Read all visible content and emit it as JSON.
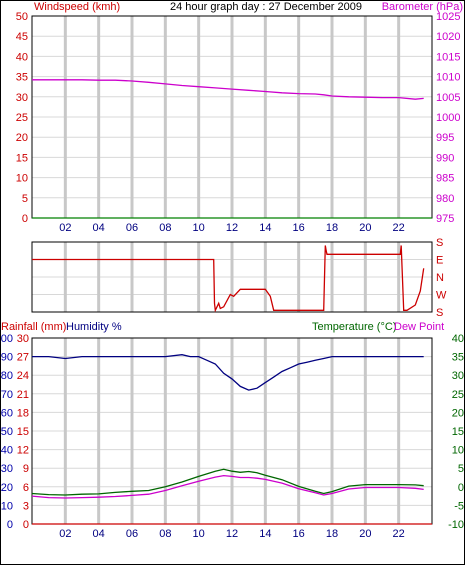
{
  "colors": {
    "frame": "#000000",
    "grid_v": "#c8c8c8",
    "grid_h": "#d8d8d8",
    "wind_axis": "#cc0000",
    "baro_axis": "#cc00cc",
    "rain_axis": "#cc0000",
    "hum_axis": "#0000aa",
    "temp_axis": "#006600",
    "title": "#000000",
    "xtick": "#000080",
    "dir_axis": "#cc0000"
  },
  "panels": {
    "top": {
      "title": "24 hour graph day : 27 December 2009",
      "left_label": "Windspeed (kmh)",
      "right_label": "Barometer (hPa)"
    },
    "middle": {
      "right_label": "S E N W S"
    },
    "bottom": {
      "left_label_1": "Rainfall (mm)",
      "left_label_2": "Humidity %",
      "right_label_1": "Temperature (°C)",
      "right_label_2": "Dew Point"
    }
  },
  "chart_data": [
    {
      "type": "line",
      "title": "24 hour graph day : 27 December 2009",
      "xlabel": "",
      "x_ticks": [
        "02",
        "04",
        "06",
        "08",
        "10",
        "12",
        "14",
        "16",
        "18",
        "20",
        "22"
      ],
      "x_range_hours": [
        0,
        24
      ],
      "y_left": {
        "label": "Windspeed (kmh)",
        "range": [
          0,
          50
        ],
        "ticks": [
          "0",
          "5",
          "10",
          "15",
          "20",
          "25",
          "30",
          "35",
          "40",
          "45",
          "50"
        ]
      },
      "y_right": {
        "label": "Barometer (hPa)",
        "range": [
          975,
          1025
        ],
        "ticks": [
          "975",
          "980",
          "985",
          "990",
          "995",
          "1000",
          "1005",
          "1010",
          "1015",
          "1020",
          "1025"
        ]
      },
      "series": [
        {
          "name": "Windspeed (kmh)",
          "axis": "left",
          "color": "#008000",
          "x": [
            0,
            24
          ],
          "y": [
            0,
            0
          ]
        },
        {
          "name": "Barometer (hPa)",
          "axis": "right",
          "color": "#cc00cc",
          "x": [
            0,
            1,
            2,
            3,
            4,
            5,
            6,
            7,
            8,
            9,
            10,
            11,
            12,
            13,
            14,
            15,
            16,
            17,
            17.5,
            18,
            19,
            20,
            21,
            22,
            23,
            23.5
          ],
          "y": [
            1009.2,
            1009.2,
            1009.2,
            1009.2,
            1009.1,
            1009.1,
            1008.9,
            1008.6,
            1008.2,
            1007.8,
            1007.5,
            1007.2,
            1006.9,
            1006.6,
            1006.3,
            1006.0,
            1005.8,
            1005.7,
            1005.5,
            1005.2,
            1005.0,
            1004.9,
            1004.8,
            1004.8,
            1004.4,
            1004.6
          ]
        }
      ],
      "grid": true
    },
    {
      "type": "line",
      "title": "",
      "x_range_hours": [
        0,
        24
      ],
      "y_right": {
        "range": [
          0,
          4
        ],
        "ticks": [
          "S",
          "E",
          "N",
          "W",
          "S"
        ]
      },
      "series": [
        {
          "name": "Wind direction",
          "axis": "right",
          "color": "#cc0000",
          "x": [
            0,
            10.9,
            10.95,
            11.0,
            11.2,
            11.3,
            11.5,
            11.9,
            12.1,
            12.5,
            13.0,
            13.6,
            14.0,
            14.3,
            14.5,
            15.0,
            16.0,
            17.5,
            17.6,
            17.65,
            17.7,
            22.1,
            22.15,
            22.3,
            22.5,
            23.0,
            23.3,
            23.5
          ],
          "y": [
            3.0,
            3.0,
            0.5,
            0.1,
            0.5,
            0.2,
            0.3,
            1.0,
            0.9,
            1.3,
            1.3,
            1.3,
            1.3,
            0.9,
            0.1,
            0.1,
            0.1,
            0.1,
            3.8,
            3.5,
            3.3,
            3.3,
            3.8,
            0.1,
            0.1,
            0.4,
            1.2,
            2.5
          ]
        }
      ],
      "grid": true
    },
    {
      "type": "line",
      "title": "",
      "x_ticks": [
        "02",
        "04",
        "06",
        "08",
        "10",
        "12",
        "14",
        "16",
        "18",
        "20",
        "22"
      ],
      "x_range_hours": [
        0,
        24
      ],
      "y_left_rain": {
        "label": "Rainfall (mm)",
        "range": [
          0,
          30
        ],
        "ticks": [
          "0",
          "3",
          "6",
          "9",
          "12",
          "15",
          "18",
          "21",
          "24",
          "27",
          "30"
        ]
      },
      "y_left_humidity": {
        "label": "Humidity %",
        "range": [
          0,
          100
        ],
        "ticks": [
          "0",
          "10",
          "20",
          "30",
          "40",
          "50",
          "60",
          "70",
          "80",
          "90",
          "100"
        ]
      },
      "y_right": {
        "label": "Temperature (°C)",
        "range": [
          -10,
          40
        ],
        "ticks": [
          "-10",
          "-5",
          "0",
          "5",
          "10",
          "15",
          "20",
          "25",
          "30",
          "35",
          "40"
        ]
      },
      "series": [
        {
          "name": "Rainfall (mm)",
          "axis": "left_rain",
          "color": "#cc0000",
          "x": [
            0,
            24
          ],
          "y": [
            0,
            0
          ]
        },
        {
          "name": "Humidity %",
          "axis": "left_humidity",
          "color": "#000080",
          "x": [
            0,
            1,
            2,
            3,
            4,
            5,
            6,
            7,
            8,
            9,
            9.5,
            10,
            10.5,
            11,
            11.5,
            12,
            12.5,
            13,
            13.5,
            14,
            14.5,
            15,
            15.5,
            16,
            16.5,
            17,
            17.5,
            18,
            19,
            20,
            21,
            22,
            23,
            23.5
          ],
          "y": [
            90,
            90,
            89,
            90,
            90,
            90,
            90,
            90,
            90,
            91,
            90,
            90,
            88,
            86,
            81,
            78,
            74,
            72,
            73,
            76,
            79,
            82,
            84,
            86,
            87,
            88,
            89,
            90,
            90,
            90,
            90,
            90,
            90,
            90
          ]
        },
        {
          "name": "Temperature (°C)",
          "axis": "right",
          "color": "#006600",
          "x": [
            0,
            1,
            2,
            3,
            4,
            5,
            6,
            7,
            8,
            9,
            10,
            11,
            11.5,
            12,
            12.5,
            13,
            13.5,
            14,
            15,
            16,
            17,
            17.5,
            18,
            19,
            20,
            21,
            22,
            23,
            23.5
          ],
          "y": [
            -1.8,
            -2.1,
            -2.2,
            -2.0,
            -1.9,
            -1.5,
            -1.2,
            -1.0,
            0.0,
            1.3,
            2.8,
            4.2,
            4.7,
            4.2,
            3.9,
            4.1,
            3.8,
            3.1,
            1.9,
            0.1,
            -1.2,
            -1.8,
            -1.3,
            0.2,
            0.6,
            0.6,
            0.6,
            0.5,
            0.3
          ]
        },
        {
          "name": "Dew Point",
          "axis": "right",
          "color": "#cc00cc",
          "x": [
            0,
            1,
            2,
            3,
            4,
            5,
            6,
            7,
            8,
            9,
            10,
            11,
            11.5,
            12,
            12.5,
            13,
            13.5,
            14,
            15,
            16,
            17,
            17.5,
            18,
            19,
            20,
            21,
            22,
            23,
            23.5
          ],
          "y": [
            -2.5,
            -2.9,
            -3.0,
            -2.9,
            -2.8,
            -2.6,
            -2.3,
            -2.0,
            -1.0,
            0.3,
            1.5,
            2.6,
            3.0,
            2.8,
            2.5,
            2.5,
            2.3,
            2.0,
            1.0,
            -0.5,
            -1.6,
            -2.2,
            -1.8,
            -0.6,
            -0.2,
            -0.2,
            -0.2,
            -0.4,
            -0.7
          ]
        }
      ],
      "grid": true
    }
  ]
}
